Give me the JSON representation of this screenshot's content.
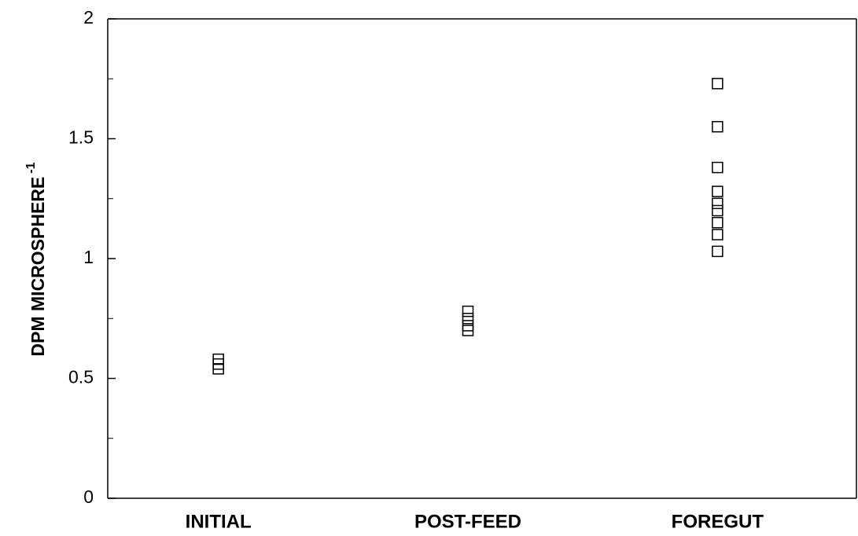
{
  "chart_data": {
    "type": "strip",
    "y_label": "DPM MICROSPHERE",
    "y_label_superscript": "-1",
    "categories": [
      "INITIAL",
      "POST-FEED",
      "FOREGUT"
    ],
    "values": [
      [
        0.58,
        0.56,
        0.54
      ],
      [
        0.78,
        0.75,
        0.72,
        0.7
      ],
      [
        1.73,
        1.55,
        1.38,
        1.28,
        1.23,
        1.2,
        1.15,
        1.1,
        1.03
      ]
    ],
    "color": "#000000",
    "marker": "open-square",
    "ylim": [
      0,
      2
    ],
    "yticks": [
      0,
      0.5,
      1,
      1.5,
      2
    ],
    "yminor_ticks": [
      0.25,
      0.75,
      1.25,
      1.75
    ]
  }
}
